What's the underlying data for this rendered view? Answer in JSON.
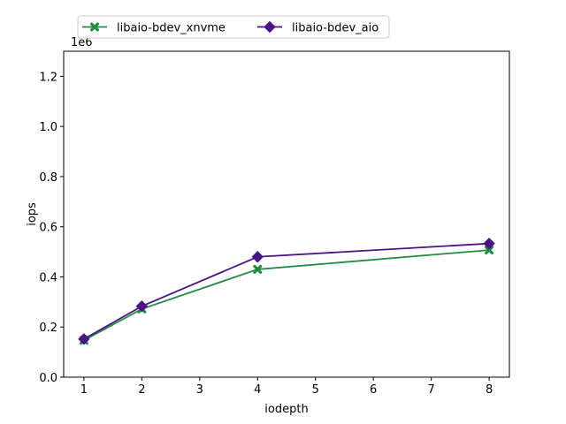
{
  "chart_data": {
    "type": "line",
    "title": "",
    "xlabel": "iodepth",
    "ylabel": "iops",
    "y_offset_label": "1e6",
    "xlim": [
      0.65,
      8.35
    ],
    "ylim": [
      0,
      1300000
    ],
    "x_ticks": [
      1,
      2,
      3,
      4,
      5,
      6,
      7,
      8
    ],
    "y_ticks": [
      0,
      200000,
      400000,
      600000,
      800000,
      1000000,
      1200000
    ],
    "y_tick_labels": [
      "0.0",
      "0.2",
      "0.4",
      "0.6",
      "0.8",
      "1.0",
      "1.2"
    ],
    "x": [
      1,
      2,
      4,
      8
    ],
    "series": [
      {
        "name": "libaio-bdev_xnvme",
        "color": "#238b45",
        "marker": "x-filled",
        "values": [
          147000,
          272000,
          430000,
          507000
        ]
      },
      {
        "name": "libaio-bdev_aio",
        "color": "#4a1486",
        "marker": "diamond",
        "values": [
          152000,
          283000,
          480000,
          533000
        ]
      }
    ],
    "legend_position": "top-center (above plot)",
    "grid": false
  }
}
